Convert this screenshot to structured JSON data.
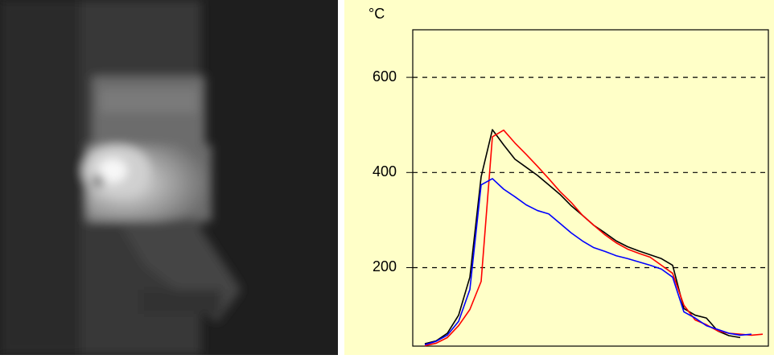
{
  "chart_data": {
    "type": "line",
    "ylabel": "°C",
    "ylim": [
      35,
      700
    ],
    "yticks": [
      200,
      400,
      600
    ],
    "grid": true,
    "series": [
      {
        "name": null,
        "color": "#000000",
        "values": [
          40,
          46,
          62,
          100,
          180,
          391,
          490,
          458,
          428,
          411,
          394,
          374,
          354,
          330,
          310,
          289,
          273,
          256,
          244,
          235,
          227,
          219,
          205,
          114,
          100,
          94,
          67,
          57,
          53,
          null,
          null
        ]
      },
      {
        "name": null,
        "color": "#ff0000",
        "values": [
          36,
          41,
          53,
          78,
          112,
          171,
          475,
          489,
          462,
          438,
          413,
          387,
          360,
          337,
          310,
          289,
          269,
          252,
          239,
          230,
          222,
          205,
          188,
          121,
          90,
          80,
          67,
          62,
          60,
          58,
          60
        ]
      },
      {
        "name": null,
        "color": "#0000ff",
        "values": [
          38,
          45,
          58,
          87,
          154,
          374,
          387,
          365,
          349,
          332,
          320,
          313,
          293,
          273,
          256,
          242,
          234,
          225,
          219,
          212,
          205,
          197,
          180,
          107,
          94,
          78,
          70,
          62,
          58,
          60,
          null
        ]
      }
    ]
  }
}
